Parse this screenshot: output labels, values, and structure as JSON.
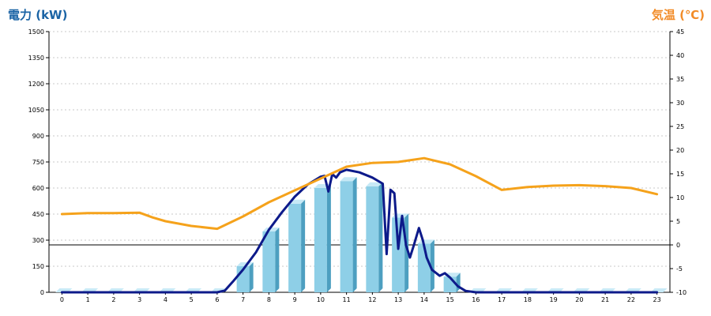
{
  "chart_data": {
    "type": "bar",
    "title_left": "電力 (kW)",
    "title_right": "気温 (℃)",
    "x": [
      "0",
      "1",
      "2",
      "3",
      "4",
      "5",
      "6",
      "7",
      "8",
      "9",
      "10",
      "11",
      "12",
      "13",
      "14",
      "15",
      "16",
      "17",
      "18",
      "19",
      "20",
      "21",
      "22",
      "23"
    ],
    "y_left": {
      "min": 0,
      "max": 1500,
      "ticks": [
        0,
        150,
        300,
        450,
        600,
        750,
        900,
        1050,
        1200,
        1350,
        1500
      ]
    },
    "y_right": {
      "min": -10,
      "max": 45,
      "ticks": [
        -10,
        -5,
        0,
        5,
        10,
        15,
        20,
        25,
        30,
        35,
        40,
        45
      ]
    },
    "grid": true,
    "series": [
      {
        "kind": "bar",
        "axis": "left",
        "values": [
          0,
          0,
          0,
          0,
          0,
          0,
          0,
          150,
          350,
          510,
          600,
          640,
          610,
          430,
          280,
          90,
          0,
          0,
          0,
          0,
          0,
          0,
          0,
          0
        ]
      },
      {
        "kind": "line",
        "axis": "left",
        "points": [
          [
            0,
            0
          ],
          [
            1,
            0
          ],
          [
            2,
            0
          ],
          [
            3,
            0
          ],
          [
            4,
            0
          ],
          [
            5,
            0
          ],
          [
            6,
            0
          ],
          [
            6.3,
            10
          ],
          [
            6.6,
            60
          ],
          [
            7,
            130
          ],
          [
            7.5,
            230
          ],
          [
            8,
            360
          ],
          [
            8.5,
            460
          ],
          [
            9,
            550
          ],
          [
            9.5,
            620
          ],
          [
            10,
            665
          ],
          [
            10.15,
            670
          ],
          [
            10.3,
            580
          ],
          [
            10.45,
            680
          ],
          [
            10.6,
            660
          ],
          [
            10.75,
            690
          ],
          [
            11,
            705
          ],
          [
            11.5,
            690
          ],
          [
            12,
            660
          ],
          [
            12.4,
            625
          ],
          [
            12.55,
            220
          ],
          [
            12.7,
            590
          ],
          [
            12.85,
            570
          ],
          [
            13,
            250
          ],
          [
            13.15,
            440
          ],
          [
            13.3,
            270
          ],
          [
            13.45,
            200
          ],
          [
            13.6,
            270
          ],
          [
            13.8,
            370
          ],
          [
            13.95,
            300
          ],
          [
            14.1,
            200
          ],
          [
            14.3,
            130
          ],
          [
            14.6,
            95
          ],
          [
            14.8,
            110
          ],
          [
            15,
            85
          ],
          [
            15.3,
            35
          ],
          [
            15.6,
            8
          ],
          [
            16,
            0
          ],
          [
            17,
            0
          ],
          [
            18,
            0
          ],
          [
            19,
            0
          ],
          [
            20,
            0
          ],
          [
            21,
            0
          ],
          [
            22,
            0
          ],
          [
            23,
            0
          ]
        ]
      },
      {
        "kind": "line",
        "axis": "right",
        "points": [
          [
            0,
            6.5
          ],
          [
            1,
            6.7
          ],
          [
            2,
            6.7
          ],
          [
            3,
            6.8
          ],
          [
            3.5,
            5.8
          ],
          [
            4,
            5.0
          ],
          [
            5,
            4.0
          ],
          [
            6,
            3.4
          ],
          [
            7,
            6.0
          ],
          [
            8,
            9.0
          ],
          [
            9,
            11.5
          ],
          [
            10,
            14.0
          ],
          [
            11,
            16.5
          ],
          [
            12,
            17.3
          ],
          [
            13,
            17.5
          ],
          [
            14,
            18.3
          ],
          [
            15,
            17.0
          ],
          [
            16,
            14.5
          ],
          [
            17,
            11.6
          ],
          [
            18,
            12.2
          ],
          [
            19,
            12.5
          ],
          [
            20,
            12.6
          ],
          [
            21,
            12.4
          ],
          [
            22,
            12.0
          ],
          [
            23,
            10.7
          ]
        ]
      }
    ]
  },
  "colors": {
    "left_title": "#1b64a5",
    "right_title": "#f28c28",
    "bar_front": "#8ecfe7",
    "bar_top": "#c7e9f6",
    "bar_side": "#4d9fc0",
    "line_power": "#0d1a8a",
    "line_temp": "#f5a21b",
    "grid": "#c8c8c8",
    "axis": "#000000",
    "zero_line": "#000000"
  }
}
